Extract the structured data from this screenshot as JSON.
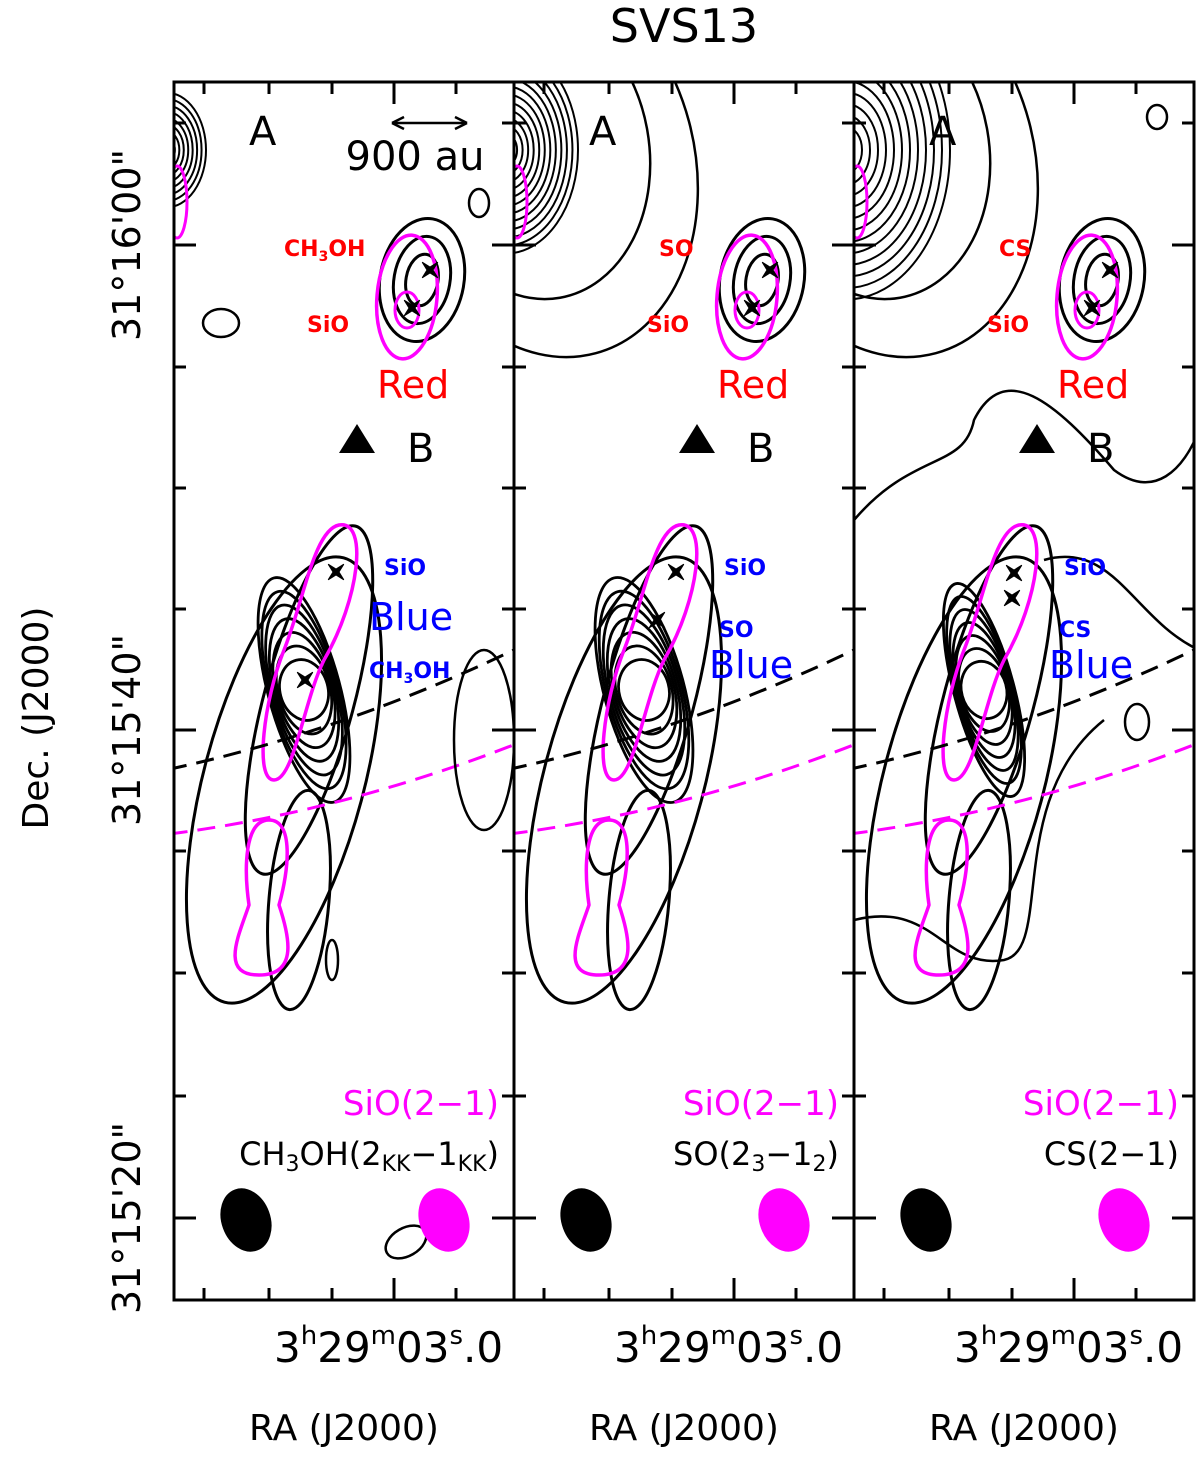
{
  "figure_title": "SVS13",
  "y_axis_label": "Dec. (J2000)",
  "y_tick_labels": [
    "31°16'00\"",
    "31°15'40\"",
    "31°15'20\""
  ],
  "colors": {
    "contour": "#000000",
    "sio_contour": "#ff00ff",
    "red_label": "#ff0000",
    "blue_label": "#0000ff",
    "marker": "#000000"
  },
  "scale_bar_label": "900 au",
  "source_labels": {
    "a": "A",
    "b": "B"
  },
  "lobe_labels": {
    "red": "Red",
    "blue": "Blue"
  },
  "panels": [
    {
      "id": "ch3oh",
      "x_tick_label": {
        "h": "3",
        "h_unit": "h",
        "m": "29",
        "m_unit": "m",
        "s": "03",
        "s_unit": "s",
        "frac": ".0"
      },
      "x_axis_label": "RA (J2000)",
      "overlay_label": "SiO(2−1)",
      "tracer_label": {
        "base": "CH",
        "sub1": "3",
        "mid": "OH(2",
        "sub2": "KK",
        "mid2": "−1",
        "sub3": "KK",
        "end": ")"
      },
      "red_peak_labels": [
        "CH3OH",
        "SiO"
      ],
      "blue_peak_labels": [
        "SiO",
        "CH3OH"
      ]
    },
    {
      "id": "so",
      "x_tick_label": {
        "h": "3",
        "h_unit": "h",
        "m": "29",
        "m_unit": "m",
        "s": "03",
        "s_unit": "s",
        "frac": ".0"
      },
      "x_axis_label": "RA (J2000)",
      "overlay_label": "SiO(2−1)",
      "tracer_label": {
        "base": "SO(2",
        "sub1": "3",
        "mid": "−1",
        "sub2": "2",
        "end": ")"
      },
      "red_peak_labels": [
        "SO",
        "SiO"
      ],
      "blue_peak_labels": [
        "SiO",
        "SO"
      ]
    },
    {
      "id": "cs",
      "x_tick_label": {
        "h": "3",
        "h_unit": "h",
        "m": "29",
        "m_unit": "m",
        "s": "03",
        "s_unit": "s",
        "frac": ".0"
      },
      "x_axis_label": "RA (J2000)",
      "overlay_label": "SiO(2−1)",
      "tracer_label": {
        "text": "CS(2−1)"
      },
      "red_peak_labels": [
        "CS",
        "SiO"
      ],
      "blue_peak_labels": [
        "SiO",
        "CS"
      ]
    }
  ],
  "chart_data": {
    "type": "contour",
    "title": "SVS13",
    "ylabel": "Dec. (J2000)",
    "xlabel": "RA (J2000)",
    "x_ticks": [
      "3h29m03.0s"
    ],
    "y_ticks": [
      "31°16'00\"",
      "31°15'40\"",
      "31°15'20\""
    ],
    "panels": [
      {
        "tracer": "CH3OH(2KK−1KK)",
        "overlay": "SiO(2−1)"
      },
      {
        "tracer": "SO(23−12)",
        "overlay": "SiO(2−1)"
      },
      {
        "tracer": "CS(2−1)",
        "overlay": "SiO(2−1)"
      }
    ],
    "sources": [
      "A",
      "B"
    ],
    "lobes": [
      "Red",
      "Blue"
    ],
    "scale_bar": "900 au"
  }
}
